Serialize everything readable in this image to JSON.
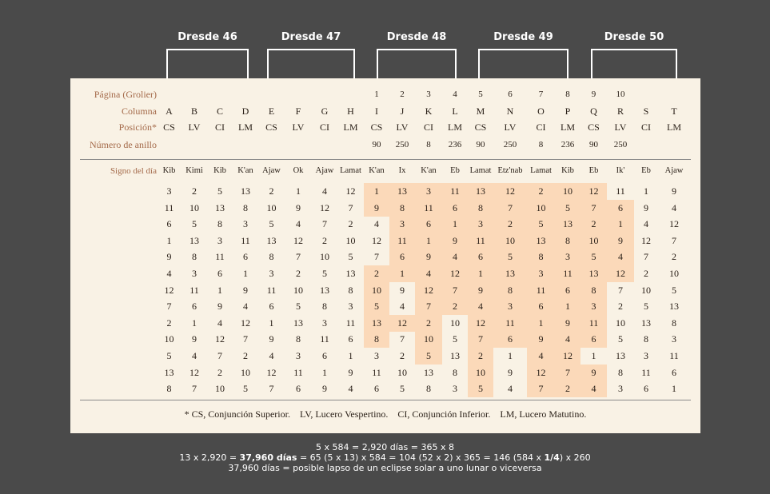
{
  "dresde_labels": [
    "Dresde 46",
    "Dresde 47",
    "Dresde 48",
    "Dresde 49",
    "Dresde 50"
  ],
  "row_labels": {
    "pagina": "Página (Grolier)",
    "columna": "Columna",
    "posicion": "Posición*",
    "anillo": "Número de anillo",
    "signo": "Signo del día"
  },
  "pagina": [
    "",
    "",
    "",
    "",
    "",
    "",
    "",
    "",
    "1",
    "2",
    "3",
    "4",
    "5",
    "6",
    "7",
    "8",
    "9",
    "10",
    "",
    ""
  ],
  "columna": [
    "A",
    "B",
    "C",
    "D",
    "E",
    "F",
    "G",
    "H",
    "I",
    "J",
    "K",
    "L",
    "M",
    "N",
    "O",
    "P",
    "Q",
    "R",
    "S",
    "T"
  ],
  "posicion": [
    "CS",
    "LV",
    "CI",
    "LM",
    "CS",
    "LV",
    "CI",
    "LM",
    "CS",
    "LV",
    "CI",
    "LM",
    "CS",
    "LV",
    "CI",
    "LM",
    "CS",
    "LV",
    "CI",
    "LM"
  ],
  "anillo": [
    "",
    "",
    "",
    "",
    "",
    "",
    "",
    "",
    "90",
    "250",
    "8",
    "236",
    "90",
    "250",
    "8",
    "236",
    "90",
    "250",
    "",
    ""
  ],
  "signos": [
    "Kib",
    "Kimi",
    "Kib",
    "K'an",
    "Ajaw",
    "Ok",
    "Ajaw",
    "Lamat",
    "K'an",
    "Ix",
    "K'an",
    "Eb",
    "Lamat",
    "Etz'nab",
    "Lamat",
    "Kib",
    "Eb",
    "Ik'",
    "Eb",
    "Ajaw"
  ],
  "numeros": [
    [
      3,
      2,
      5,
      13,
      2,
      1,
      4,
      12,
      1,
      13,
      3,
      11,
      13,
      12,
      2,
      10,
      12,
      11,
      1,
      9
    ],
    [
      11,
      10,
      13,
      8,
      10,
      9,
      12,
      7,
      9,
      8,
      11,
      6,
      8,
      7,
      10,
      5,
      7,
      6,
      9,
      4
    ],
    [
      6,
      5,
      8,
      3,
      5,
      4,
      7,
      2,
      4,
      3,
      6,
      1,
      3,
      2,
      5,
      13,
      2,
      1,
      4,
      12
    ],
    [
      1,
      13,
      3,
      11,
      13,
      12,
      2,
      10,
      12,
      11,
      1,
      9,
      11,
      10,
      13,
      8,
      10,
      9,
      12,
      7
    ],
    [
      9,
      8,
      11,
      6,
      8,
      7,
      10,
      5,
      7,
      6,
      9,
      4,
      6,
      5,
      8,
      3,
      5,
      4,
      7,
      2
    ],
    [
      4,
      3,
      6,
      1,
      3,
      2,
      5,
      13,
      2,
      1,
      4,
      12,
      1,
      13,
      3,
      11,
      13,
      12,
      2,
      10
    ],
    [
      12,
      11,
      1,
      9,
      11,
      10,
      13,
      8,
      10,
      9,
      12,
      7,
      9,
      8,
      11,
      6,
      8,
      7,
      10,
      5
    ],
    [
      7,
      6,
      9,
      4,
      6,
      5,
      8,
      3,
      5,
      4,
      7,
      2,
      4,
      3,
      6,
      1,
      3,
      2,
      5,
      13
    ],
    [
      2,
      1,
      4,
      12,
      1,
      13,
      3,
      11,
      13,
      12,
      2,
      10,
      12,
      11,
      1,
      9,
      11,
      10,
      13,
      8
    ],
    [
      10,
      9,
      12,
      7,
      9,
      8,
      11,
      6,
      8,
      7,
      10,
      5,
      7,
      6,
      9,
      4,
      6,
      5,
      8,
      3
    ],
    [
      5,
      4,
      7,
      2,
      4,
      3,
      6,
      1,
      3,
      2,
      5,
      13,
      2,
      1,
      4,
      12,
      1,
      13,
      3,
      11
    ],
    [
      13,
      12,
      2,
      10,
      12,
      11,
      1,
      9,
      11,
      10,
      13,
      8,
      10,
      9,
      12,
      7,
      9,
      8,
      11,
      6
    ],
    [
      8,
      7,
      10,
      5,
      7,
      6,
      9,
      4,
      6,
      5,
      8,
      3,
      5,
      4,
      7,
      2,
      4,
      3,
      6,
      1
    ]
  ],
  "highlight": [
    [
      8,
      9,
      10,
      11,
      12,
      13,
      14,
      15,
      16
    ],
    [
      8,
      9,
      10,
      11,
      12,
      13,
      14,
      15,
      16,
      17
    ],
    [
      9,
      10,
      11,
      12,
      13,
      14,
      15,
      16,
      17
    ],
    [
      9,
      10,
      11,
      12,
      13,
      14,
      15,
      16,
      17
    ],
    [
      9,
      10,
      11,
      12,
      13,
      14,
      15,
      16,
      17
    ],
    [
      8,
      9,
      10,
      11,
      12,
      13,
      14,
      15,
      16,
      17
    ],
    [
      8,
      10,
      11,
      12,
      13,
      14,
      15,
      16
    ],
    [
      8,
      10,
      11,
      12,
      13,
      14,
      15,
      16
    ],
    [
      8,
      9,
      10,
      12,
      13,
      14,
      15,
      16
    ],
    [
      8,
      10,
      12,
      13,
      14,
      15,
      16
    ],
    [
      10,
      12,
      14,
      15
    ],
    [
      12,
      14,
      15,
      16
    ],
    [
      12,
      14,
      15,
      16
    ]
  ],
  "footnote": "* CS, Conjunción Superior.    LV, Lucero Vespertino.    CI, Conjunción Inferior.    LM, Lucero Matutino.",
  "formulas": {
    "line1": "5 x 584 = 2,920 días = 365 x 8",
    "line2_pre": "13 x 2,920 = ",
    "line2_bold": "37,960 días",
    "line2_mid": " = 65 (5 x 13) x 584 = 104 (52 x 2) x 365 = 146 (584 x ",
    "line2_frac": "1/4",
    "line2_post": ") x 260",
    "line3": "37,960 días = posible lapso de un eclipse solar a uno lunar o viceversa"
  },
  "colors": {
    "background": "#4a4a4a",
    "card": "#f9f2e5",
    "highlight": "#fbd9b9",
    "label": "#a46a4a"
  }
}
